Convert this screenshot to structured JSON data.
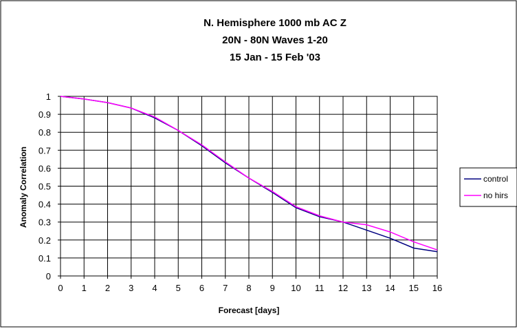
{
  "chart_data": {
    "type": "line",
    "title_lines": [
      "N. Hemisphere 1000 mb AC Z",
      "20N - 80N Waves 1-20",
      "15 Jan - 15 Feb '03"
    ],
    "xlabel": "Forecast [days]",
    "ylabel": "Anomaly Correlation",
    "xlim": [
      0,
      16
    ],
    "ylim": [
      0,
      1
    ],
    "x": [
      0,
      1,
      2,
      3,
      4,
      5,
      6,
      7,
      8,
      9,
      10,
      11,
      12,
      13,
      14,
      15,
      16
    ],
    "x_tick_labels": [
      "0",
      "1",
      "2",
      "3",
      "4",
      "5",
      "6",
      "7",
      "8",
      "9",
      "10",
      "11",
      "12",
      "13",
      "14",
      "15",
      "16"
    ],
    "y_tick_labels": [
      "0",
      "0.1",
      "0.2",
      "0.3",
      "0.4",
      "0.5",
      "0.6",
      "0.7",
      "0.8",
      "0.9",
      "1"
    ],
    "grid": true,
    "legend_position": "right",
    "series": [
      {
        "name": "control",
        "color": "#000080",
        "values": [
          1.0,
          0.985,
          0.965,
          0.935,
          0.88,
          0.81,
          0.725,
          0.63,
          0.545,
          0.465,
          0.38,
          0.33,
          0.3,
          0.255,
          0.21,
          0.155,
          0.135
        ]
      },
      {
        "name": "no hirs",
        "color": "#ff00ff",
        "values": [
          1.0,
          0.985,
          0.965,
          0.935,
          0.885,
          0.81,
          0.73,
          0.635,
          0.545,
          0.47,
          0.385,
          0.335,
          0.3,
          0.285,
          0.245,
          0.19,
          0.145
        ]
      }
    ]
  }
}
